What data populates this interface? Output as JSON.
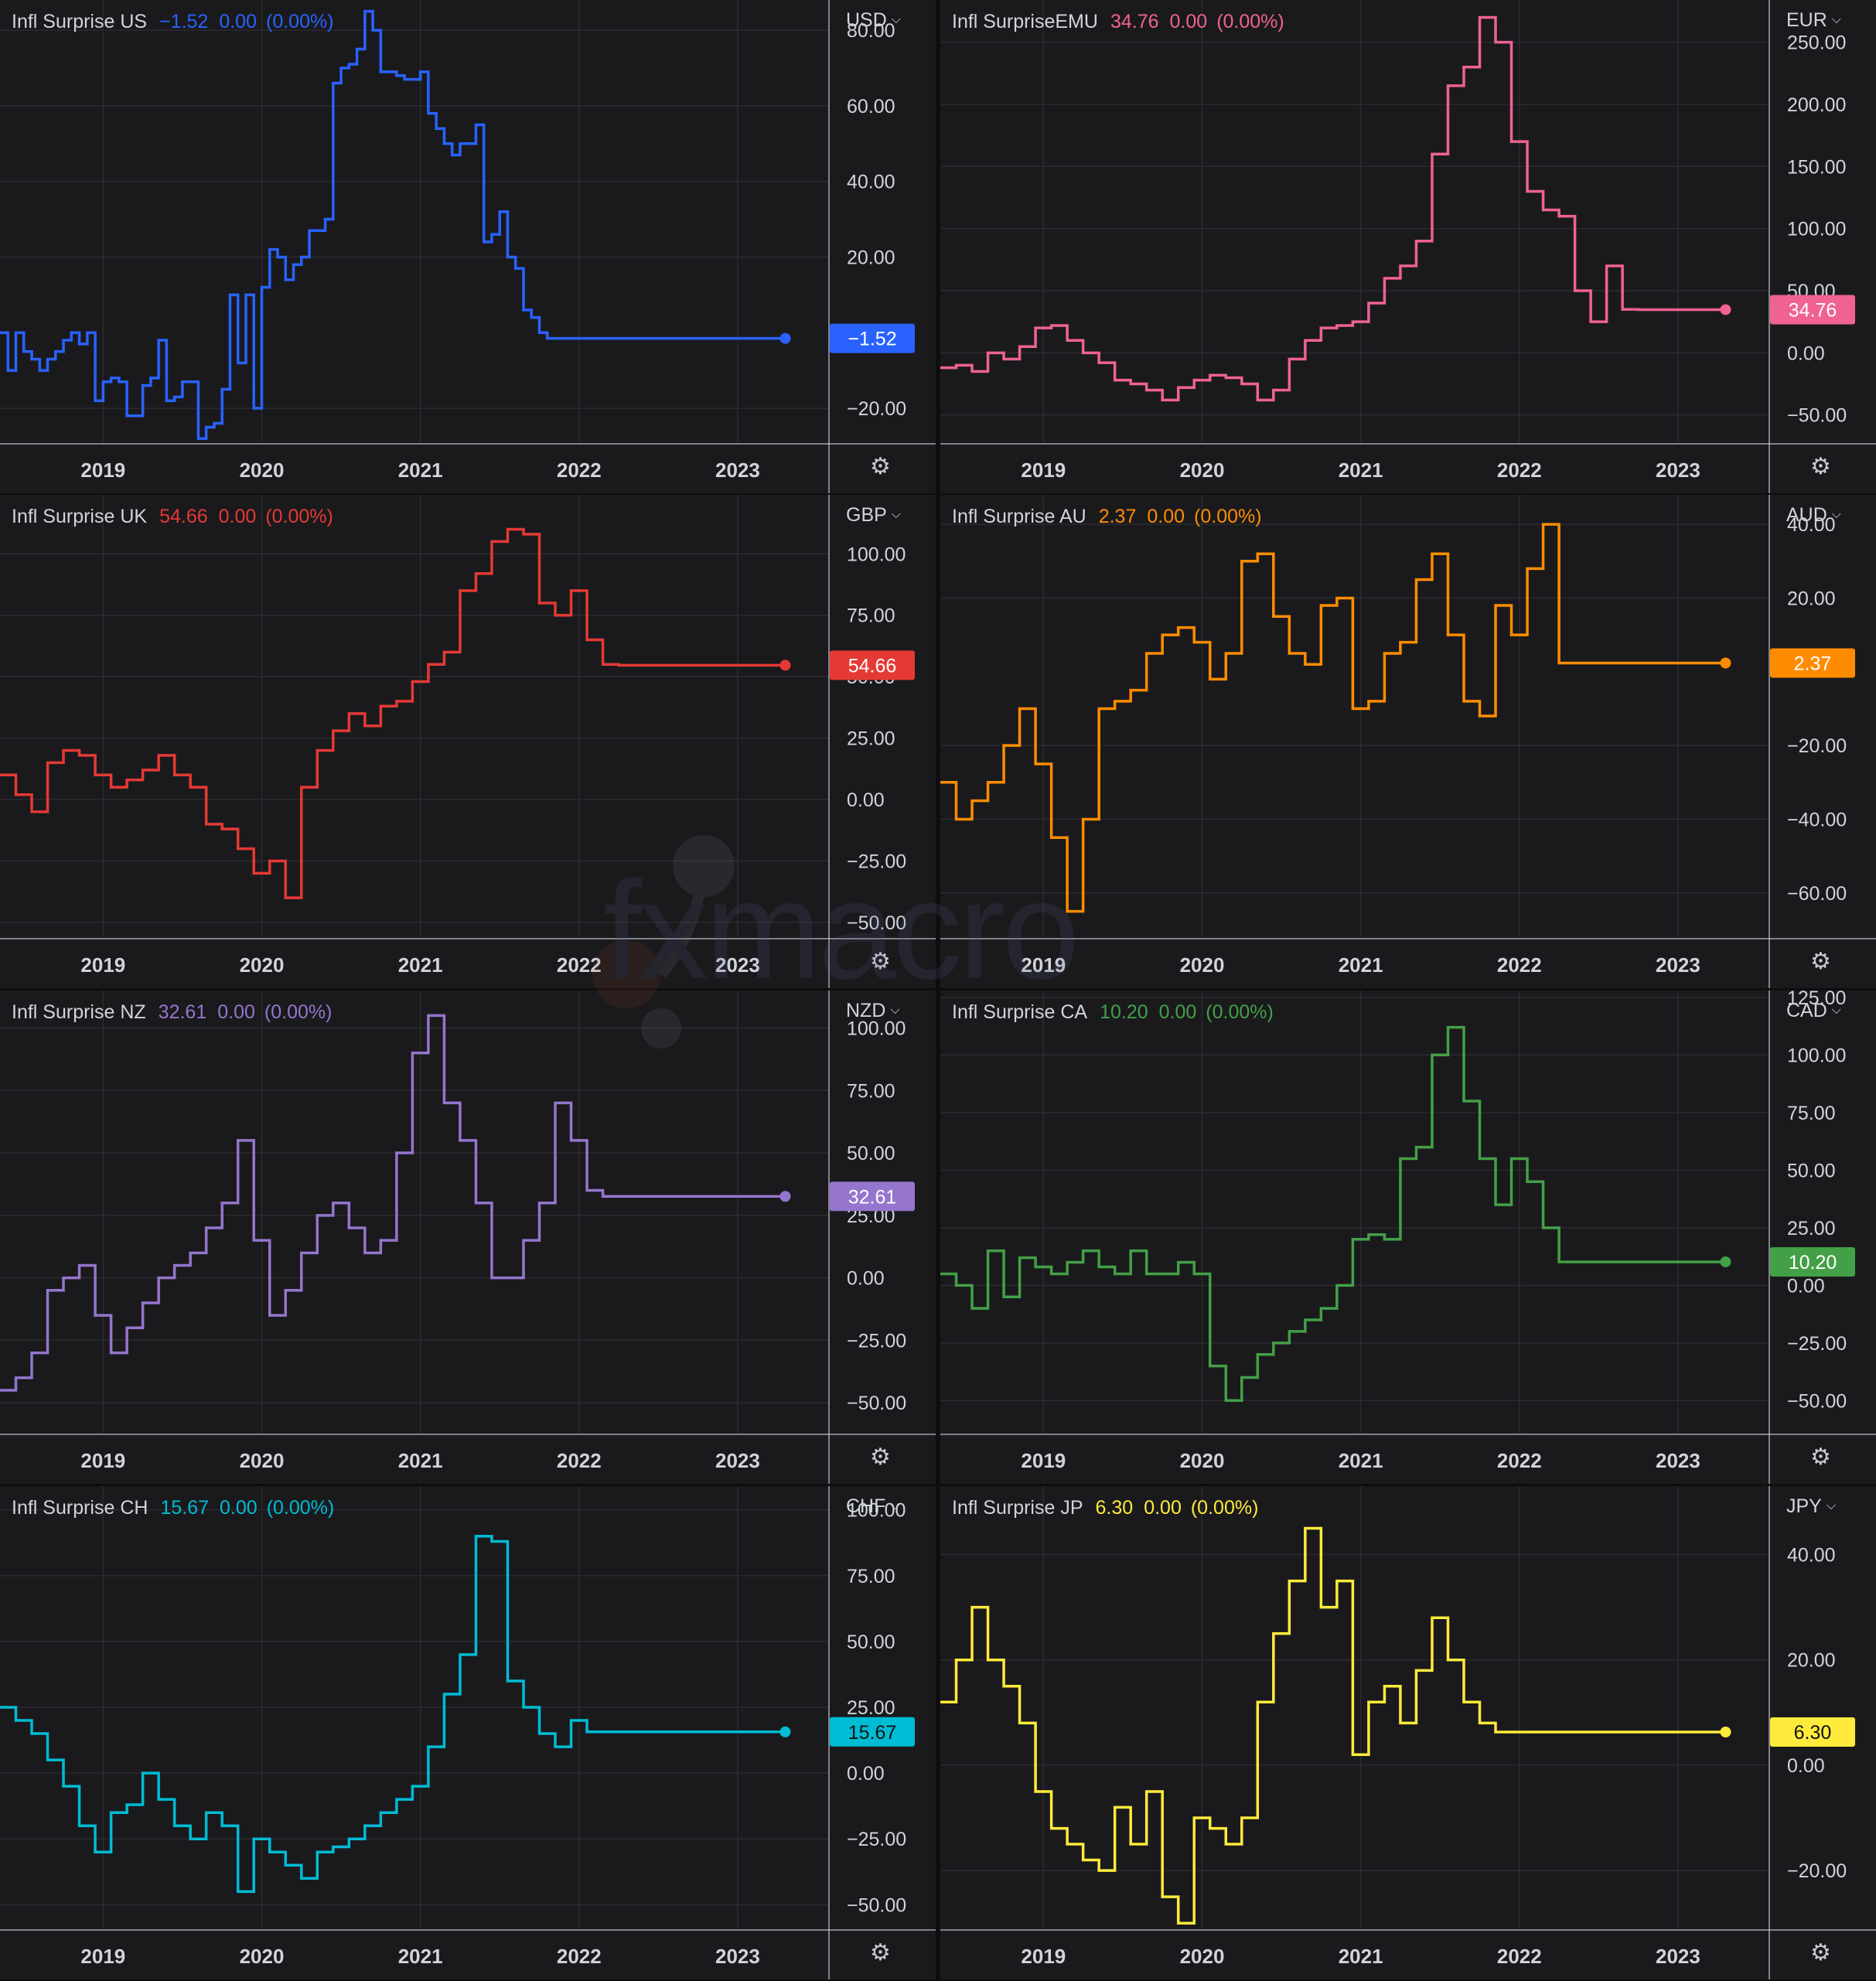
{
  "x_tick_labels": [
    "2019",
    "2020",
    "2021",
    "2022",
    "2023"
  ],
  "watermark_text": "fxmacro",
  "gear_icon": "gear-icon",
  "chart_data": [
    {
      "type": "line",
      "name": "Infl Surprise US",
      "currency": "USD",
      "color": "#2962ff",
      "last_value": "−1.52",
      "change": "0.00",
      "change_pct": "(0.00%)",
      "y_ticks": [
        "80.00",
        "60.00",
        "40.00",
        "20.00",
        "−20.00"
      ],
      "ylim": [
        -29,
        88
      ],
      "last": -1.52,
      "x_range": [
        2018.35,
        2023.4
      ],
      "x": [
        2018.35,
        2018.4,
        2018.45,
        2018.5,
        2018.55,
        2018.6,
        2018.65,
        2018.7,
        2018.75,
        2018.8,
        2018.85,
        2018.9,
        2018.95,
        2019.0,
        2019.05,
        2019.1,
        2019.15,
        2019.2,
        2019.25,
        2019.3,
        2019.35,
        2019.4,
        2019.45,
        2019.5,
        2019.55,
        2019.6,
        2019.65,
        2019.7,
        2019.75,
        2019.8,
        2019.85,
        2019.9,
        2019.95,
        2020.0,
        2020.05,
        2020.1,
        2020.15,
        2020.2,
        2020.25,
        2020.3,
        2020.35,
        2020.4,
        2020.45,
        2020.5,
        2020.55,
        2020.6,
        2020.65,
        2020.7,
        2020.75,
        2020.8,
        2020.85,
        2020.9,
        2020.95,
        2021.0,
        2021.05,
        2021.1,
        2021.15,
        2021.2,
        2021.25,
        2021.3,
        2021.35,
        2021.4,
        2021.45,
        2021.5,
        2021.55,
        2021.6,
        2021.65,
        2021.7,
        2021.75,
        2021.8,
        2021.85,
        2021.9,
        2021.95,
        2022.0,
        2022.05,
        2022.1,
        2022.15,
        2022.2,
        2022.25,
        2022.3,
        2022.35,
        2022.4,
        2022.45,
        2022.5,
        2022.55,
        2022.6,
        2022.65,
        2022.7,
        2022.75,
        2022.8,
        2022.85,
        2022.9,
        2022.95,
        2023.0,
        2023.05,
        2023.1,
        2023.15,
        2023.2,
        2023.25,
        2023.3
      ],
      "y": [
        0,
        -10,
        0,
        -5,
        -7,
        -10,
        -7,
        -5,
        -2,
        0,
        -3,
        0,
        -18,
        -13,
        -12,
        -13,
        -22,
        -22,
        -14,
        -12,
        -2,
        -18,
        -17,
        -13,
        -13,
        -28,
        -25,
        -24,
        -15,
        10,
        -8,
        10,
        -20,
        12,
        22,
        20,
        14,
        18,
        20,
        27,
        27,
        30,
        66,
        70,
        71,
        75,
        85,
        80,
        69,
        69,
        68,
        67,
        67,
        69,
        58,
        54,
        50,
        47,
        50,
        50,
        55,
        24,
        26,
        32,
        20,
        17,
        6,
        4,
        0,
        -1.52,
        -1.52,
        -1.52,
        -1.52,
        -1.52,
        -1.52,
        -1.52,
        -1.52,
        -1.52,
        -1.52,
        -1.52,
        -1.52,
        -1.52,
        -1.52,
        -1.52,
        -1.52,
        -1.52,
        -1.52,
        -1.52,
        -1.52,
        -1.52,
        -1.52,
        -1.52,
        -1.52,
        -1.52,
        -1.52,
        -1.52,
        -1.52,
        -1.52,
        -1.52,
        -1.52
      ]
    },
    {
      "type": "line",
      "name": "Infl SurpriseEMU",
      "currency": "EUR",
      "color": "#f06292",
      "last_value": "34.76",
      "change": "0.00",
      "change_pct": "(0.00%)",
      "y_ticks": [
        "250.00",
        "200.00",
        "150.00",
        "100.00",
        "50.00",
        "0.00",
        "−50.00"
      ],
      "ylim": [
        -72,
        284
      ],
      "last": 34.76,
      "x_range": [
        2018.35,
        2023.4
      ],
      "x": [
        2018.35,
        2018.45,
        2018.55,
        2018.65,
        2018.75,
        2018.85,
        2018.95,
        2019.05,
        2019.15,
        2019.25,
        2019.35,
        2019.45,
        2019.55,
        2019.65,
        2019.75,
        2019.85,
        2019.95,
        2020.05,
        2020.15,
        2020.25,
        2020.35,
        2020.45,
        2020.55,
        2020.65,
        2020.75,
        2020.85,
        2020.95,
        2021.05,
        2021.15,
        2021.25,
        2021.35,
        2021.45,
        2021.55,
        2021.65,
        2021.75,
        2021.85,
        2021.95,
        2022.05,
        2022.15,
        2022.25,
        2022.35,
        2022.45,
        2022.55,
        2022.65,
        2022.75,
        2022.85,
        2022.95,
        2023.05,
        2023.15,
        2023.25,
        2023.3
      ],
      "y": [
        -12,
        -10,
        -15,
        0,
        -5,
        5,
        20,
        22,
        10,
        0,
        -8,
        -22,
        -25,
        -30,
        -38,
        -28,
        -22,
        -18,
        -20,
        -25,
        -38,
        -30,
        -5,
        10,
        20,
        22,
        25,
        40,
        60,
        70,
        90,
        160,
        215,
        230,
        270,
        250,
        170,
        130,
        115,
        110,
        50,
        25,
        70,
        35,
        34.76,
        34.76,
        34.76,
        34.76,
        34.76,
        34.76,
        34.76
      ]
    },
    {
      "type": "line",
      "name": "Infl Surprise UK",
      "currency": "GBP",
      "color": "#e53935",
      "last_value": "54.66",
      "change": "0.00",
      "change_pct": "(0.00%)",
      "y_ticks": [
        "100.00",
        "75.00",
        "50.00",
        "25.00",
        "0.00",
        "−25.00",
        "−50.00"
      ],
      "ylim": [
        -56,
        124
      ],
      "last": 54.66,
      "x_range": [
        2018.35,
        2023.4
      ],
      "x": [
        2018.35,
        2018.45,
        2018.55,
        2018.65,
        2018.75,
        2018.85,
        2018.95,
        2019.05,
        2019.15,
        2019.25,
        2019.35,
        2019.45,
        2019.55,
        2019.65,
        2019.75,
        2019.85,
        2019.95,
        2020.05,
        2020.15,
        2020.25,
        2020.35,
        2020.45,
        2020.55,
        2020.65,
        2020.75,
        2020.85,
        2020.95,
        2021.05,
        2021.15,
        2021.25,
        2021.35,
        2021.45,
        2021.55,
        2021.65,
        2021.75,
        2021.85,
        2021.95,
        2022.05,
        2022.15,
        2022.25,
        2022.35,
        2022.45,
        2022.55,
        2022.65,
        2022.75,
        2022.85,
        2022.95,
        2023.05,
        2023.15,
        2023.25,
        2023.3
      ],
      "y": [
        10,
        2,
        -5,
        15,
        20,
        18,
        10,
        5,
        8,
        12,
        18,
        10,
        5,
        -10,
        -12,
        -20,
        -30,
        -25,
        -40,
        5,
        20,
        28,
        35,
        30,
        38,
        40,
        48,
        55,
        60,
        85,
        92,
        105,
        110,
        108,
        80,
        75,
        85,
        65,
        55,
        54.66,
        54.66,
        54.66,
        54.66,
        54.66,
        54.66,
        54.66,
        54.66,
        54.66,
        54.66,
        54.66,
        54.66
      ]
    },
    {
      "type": "line",
      "name": "Infl Surprise AU",
      "currency": "AUD",
      "color": "#ff8c00",
      "last_value": "2.37",
      "change": "0.00",
      "change_pct": "(0.00%)",
      "y_ticks": [
        "40.00",
        "20.00",
        "−20.00",
        "−40.00",
        "−60.00"
      ],
      "ylim": [
        -72,
        48
      ],
      "last": 2.37,
      "x_range": [
        2018.35,
        2023.4
      ],
      "x": [
        2018.35,
        2018.45,
        2018.55,
        2018.65,
        2018.75,
        2018.85,
        2018.95,
        2019.05,
        2019.15,
        2019.25,
        2019.35,
        2019.45,
        2019.55,
        2019.65,
        2019.75,
        2019.85,
        2019.95,
        2020.05,
        2020.15,
        2020.25,
        2020.35,
        2020.45,
        2020.55,
        2020.65,
        2020.75,
        2020.85,
        2020.95,
        2021.05,
        2021.15,
        2021.25,
        2021.35,
        2021.45,
        2021.55,
        2021.65,
        2021.75,
        2021.85,
        2021.95,
        2022.05,
        2022.15,
        2022.25,
        2022.35,
        2022.45,
        2022.55,
        2022.65,
        2022.75,
        2022.85,
        2022.95,
        2023.05,
        2023.15,
        2023.25,
        2023.3
      ],
      "y": [
        -30,
        -40,
        -35,
        -30,
        -20,
        -10,
        -25,
        -45,
        -65,
        -40,
        -10,
        -8,
        -5,
        5,
        10,
        12,
        8,
        -2,
        5,
        30,
        32,
        15,
        5,
        2,
        18,
        20,
        -10,
        -8,
        5,
        8,
        25,
        32,
        10,
        -8,
        -12,
        18,
        10,
        28,
        40,
        2.37,
        2.37,
        2.37,
        2.37,
        2.37,
        2.37,
        2.37,
        2.37,
        2.37,
        2.37,
        2.37,
        2.37
      ]
    },
    {
      "type": "line",
      "name": "Infl Surprise NZ",
      "currency": "NZD",
      "color": "#9575cd",
      "last_value": "32.61",
      "change": "0.00",
      "change_pct": "(0.00%)",
      "y_ticks": [
        "100.00",
        "75.00",
        "50.00",
        "25.00",
        "0.00",
        "−25.00",
        "−50.00"
      ],
      "ylim": [
        -62,
        115
      ],
      "last": 32.61,
      "x_range": [
        2018.35,
        2023.4
      ],
      "x": [
        2018.35,
        2018.45,
        2018.55,
        2018.65,
        2018.75,
        2018.85,
        2018.95,
        2019.05,
        2019.15,
        2019.25,
        2019.35,
        2019.45,
        2019.55,
        2019.65,
        2019.75,
        2019.85,
        2019.95,
        2020.05,
        2020.15,
        2020.25,
        2020.35,
        2020.45,
        2020.55,
        2020.65,
        2020.75,
        2020.85,
        2020.95,
        2021.05,
        2021.15,
        2021.25,
        2021.35,
        2021.45,
        2021.55,
        2021.65,
        2021.75,
        2021.85,
        2021.95,
        2022.05,
        2022.15,
        2022.25,
        2022.35,
        2022.45,
        2022.55,
        2022.65,
        2022.75,
        2022.85,
        2022.95,
        2023.05,
        2023.15,
        2023.25,
        2023.3
      ],
      "y": [
        -45,
        -40,
        -30,
        -5,
        0,
        5,
        -15,
        -30,
        -20,
        -10,
        0,
        5,
        10,
        20,
        30,
        55,
        15,
        -15,
        -5,
        10,
        25,
        30,
        20,
        10,
        15,
        50,
        90,
        105,
        70,
        55,
        30,
        0,
        0,
        15,
        30,
        70,
        55,
        35,
        32.61,
        32.61,
        32.61,
        32.61,
        32.61,
        32.61,
        32.61,
        32.61,
        32.61,
        32.61,
        32.61,
        32.61,
        32.61
      ]
    },
    {
      "type": "line",
      "name": "Infl Surprise CA",
      "currency": "CAD",
      "color": "#43a047",
      "last_value": "10.20",
      "change": "0.00",
      "change_pct": "(0.00%)",
      "y_ticks": [
        "125.00",
        "100.00",
        "75.00",
        "50.00",
        "25.00",
        "0.00",
        "−25.00",
        "−50.00"
      ],
      "ylim": [
        -64,
        128
      ],
      "last": 10.2,
      "x_range": [
        2018.35,
        2023.4
      ],
      "x": [
        2018.35,
        2018.45,
        2018.55,
        2018.65,
        2018.75,
        2018.85,
        2018.95,
        2019.05,
        2019.15,
        2019.25,
        2019.35,
        2019.45,
        2019.55,
        2019.65,
        2019.75,
        2019.85,
        2019.95,
        2020.05,
        2020.15,
        2020.25,
        2020.35,
        2020.45,
        2020.55,
        2020.65,
        2020.75,
        2020.85,
        2020.95,
        2021.05,
        2021.15,
        2021.25,
        2021.35,
        2021.45,
        2021.55,
        2021.65,
        2021.75,
        2021.85,
        2021.95,
        2022.05,
        2022.15,
        2022.25,
        2022.35,
        2022.45,
        2022.55,
        2022.65,
        2022.75,
        2022.85,
        2022.95,
        2023.05,
        2023.15,
        2023.25,
        2023.3
      ],
      "y": [
        5,
        0,
        -10,
        15,
        -5,
        12,
        8,
        5,
        10,
        15,
        8,
        5,
        15,
        5,
        5,
        10,
        5,
        -35,
        -50,
        -40,
        -30,
        -25,
        -20,
        -15,
        -10,
        0,
        20,
        22,
        20,
        55,
        60,
        100,
        112,
        80,
        55,
        35,
        55,
        45,
        25,
        10.2,
        10.2,
        10.2,
        10.2,
        10.2,
        10.2,
        10.2,
        10.2,
        10.2,
        10.2,
        10.2,
        10.2
      ]
    },
    {
      "type": "line",
      "name": "Infl Surprise CH",
      "currency": "CHF",
      "color": "#00bcd4",
      "last_value": "15.67",
      "change": "0.00",
      "change_pct": "(0.00%)",
      "y_ticks": [
        "100.00",
        "75.00",
        "50.00",
        "25.00",
        "0.00",
        "−25.00",
        "−50.00"
      ],
      "ylim": [
        -59,
        109
      ],
      "last": 15.67,
      "x_range": [
        2018.35,
        2023.4
      ],
      "x": [
        2018.35,
        2018.45,
        2018.55,
        2018.65,
        2018.75,
        2018.85,
        2018.95,
        2019.05,
        2019.15,
        2019.25,
        2019.35,
        2019.45,
        2019.55,
        2019.65,
        2019.75,
        2019.85,
        2019.95,
        2020.05,
        2020.15,
        2020.25,
        2020.35,
        2020.45,
        2020.55,
        2020.65,
        2020.75,
        2020.85,
        2020.95,
        2021.05,
        2021.15,
        2021.25,
        2021.35,
        2021.45,
        2021.55,
        2021.65,
        2021.75,
        2021.85,
        2021.95,
        2022.05,
        2022.15,
        2022.25,
        2022.35,
        2022.45,
        2022.55,
        2022.65,
        2022.75,
        2022.85,
        2022.95,
        2023.05,
        2023.15,
        2023.25,
        2023.3
      ],
      "y": [
        25,
        20,
        15,
        5,
        -5,
        -20,
        -30,
        -15,
        -12,
        0,
        -10,
        -20,
        -25,
        -15,
        -20,
        -45,
        -25,
        -30,
        -35,
        -40,
        -30,
        -28,
        -25,
        -20,
        -15,
        -10,
        -5,
        10,
        30,
        45,
        90,
        88,
        35,
        25,
        15,
        10,
        20,
        15.67,
        15.67,
        15.67,
        15.67,
        15.67,
        15.67,
        15.67,
        15.67,
        15.67,
        15.67,
        15.67,
        15.67,
        15.67,
        15.67
      ]
    },
    {
      "type": "line",
      "name": "Infl Surprise JP",
      "currency": "JPY",
      "color": "#ffeb3b",
      "last_value": "6.30",
      "change": "0.00",
      "change_pct": "(0.00%)",
      "y_ticks": [
        "40.00",
        "20.00",
        "0.00",
        "−20.00"
      ],
      "ylim": [
        -31,
        53
      ],
      "last": 6.3,
      "x_range": [
        2018.35,
        2023.4
      ],
      "x": [
        2018.35,
        2018.45,
        2018.55,
        2018.65,
        2018.75,
        2018.85,
        2018.95,
        2019.05,
        2019.15,
        2019.25,
        2019.35,
        2019.45,
        2019.55,
        2019.65,
        2019.75,
        2019.85,
        2019.95,
        2020.05,
        2020.15,
        2020.25,
        2020.35,
        2020.45,
        2020.55,
        2020.65,
        2020.75,
        2020.85,
        2020.95,
        2021.05,
        2021.15,
        2021.25,
        2021.35,
        2021.45,
        2021.55,
        2021.65,
        2021.75,
        2021.85,
        2021.95,
        2022.05,
        2022.15,
        2022.25,
        2022.35,
        2022.45,
        2022.55,
        2022.65,
        2022.75,
        2022.85,
        2022.95,
        2023.05,
        2023.15,
        2023.25,
        2023.3
      ],
      "y": [
        12,
        20,
        30,
        20,
        15,
        8,
        -5,
        -12,
        -15,
        -18,
        -20,
        -8,
        -15,
        -5,
        -25,
        -30,
        -10,
        -12,
        -15,
        -10,
        12,
        25,
        35,
        45,
        30,
        35,
        2,
        12,
        15,
        8,
        18,
        28,
        20,
        12,
        8,
        6.3,
        6.3,
        6.3,
        6.3,
        6.3,
        6.3,
        6.3,
        6.3,
        6.3,
        6.3,
        6.3,
        6.3,
        6.3,
        6.3,
        6.3,
        6.3
      ]
    }
  ]
}
